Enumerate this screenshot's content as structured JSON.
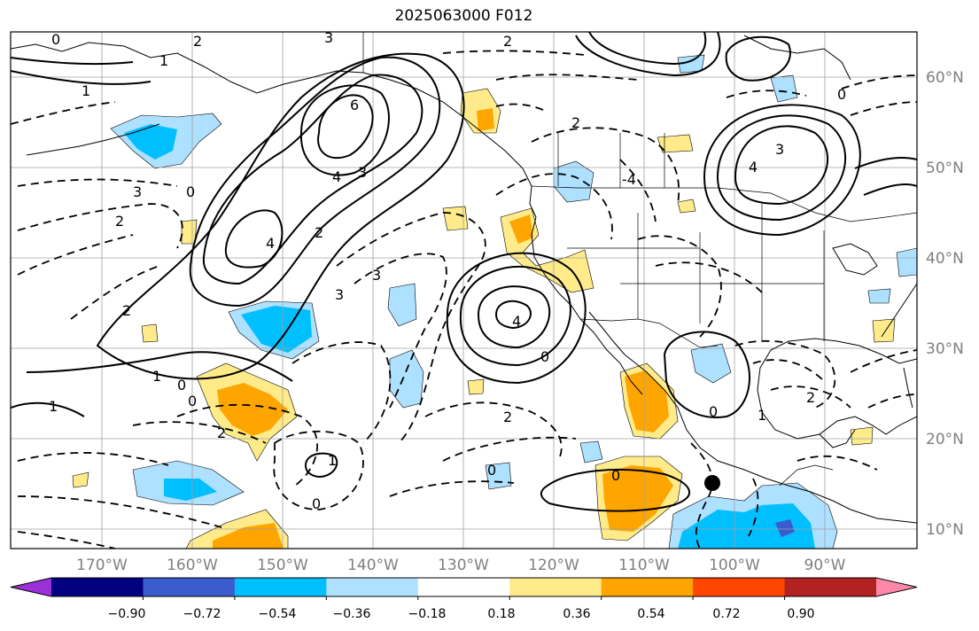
{
  "title": "2025063000 F012",
  "lat_labels": [
    "60°N",
    "50°N",
    "40°N",
    "30°N",
    "20°N",
    "10°N"
  ],
  "lon_labels": [
    "170°W",
    "160°W",
    "150°W",
    "140°W",
    "130°W",
    "120°W",
    "110°W",
    "100°W",
    "90°W"
  ],
  "colorbar": {
    "colors": [
      "#9b30d9",
      "#000080",
      "#3a5ccc",
      "#00bfff",
      "#aee0ff",
      "#ffffff",
      "#ffeb8a",
      "#ffa500",
      "#ff4500",
      "#b22222",
      "#ff88aa"
    ],
    "tick_labels": [
      "−0.90",
      "−0.72",
      "−0.54",
      "−0.36",
      "−0.18",
      "0.18",
      "0.36",
      "0.54",
      "0.72",
      "0.90"
    ]
  },
  "contour_labels": {
    "a": "0",
    "b": "2",
    "c": "1",
    "d": "1",
    "e": "6",
    "f": "4",
    "g": "3",
    "h": "4",
    "i": "2",
    "j": "3",
    "k": "2",
    "l": "0",
    "m": "2",
    "n": "3",
    "o": "3",
    "p": "4",
    "q": "0",
    "r": "2",
    "s": "-4",
    "t": "1",
    "u": "0",
    "v": "1",
    "w": "0",
    "x": "2",
    "y": "0",
    "z": "0",
    "aa": "4",
    "bb": "3",
    "cc": "0",
    "dd": "2",
    "ee": "0",
    "ff": "2",
    "gg": "1",
    "hh": "0",
    "ii": "2",
    "jj": "3",
    "kk": "1"
  },
  "marker": "station-dot"
}
